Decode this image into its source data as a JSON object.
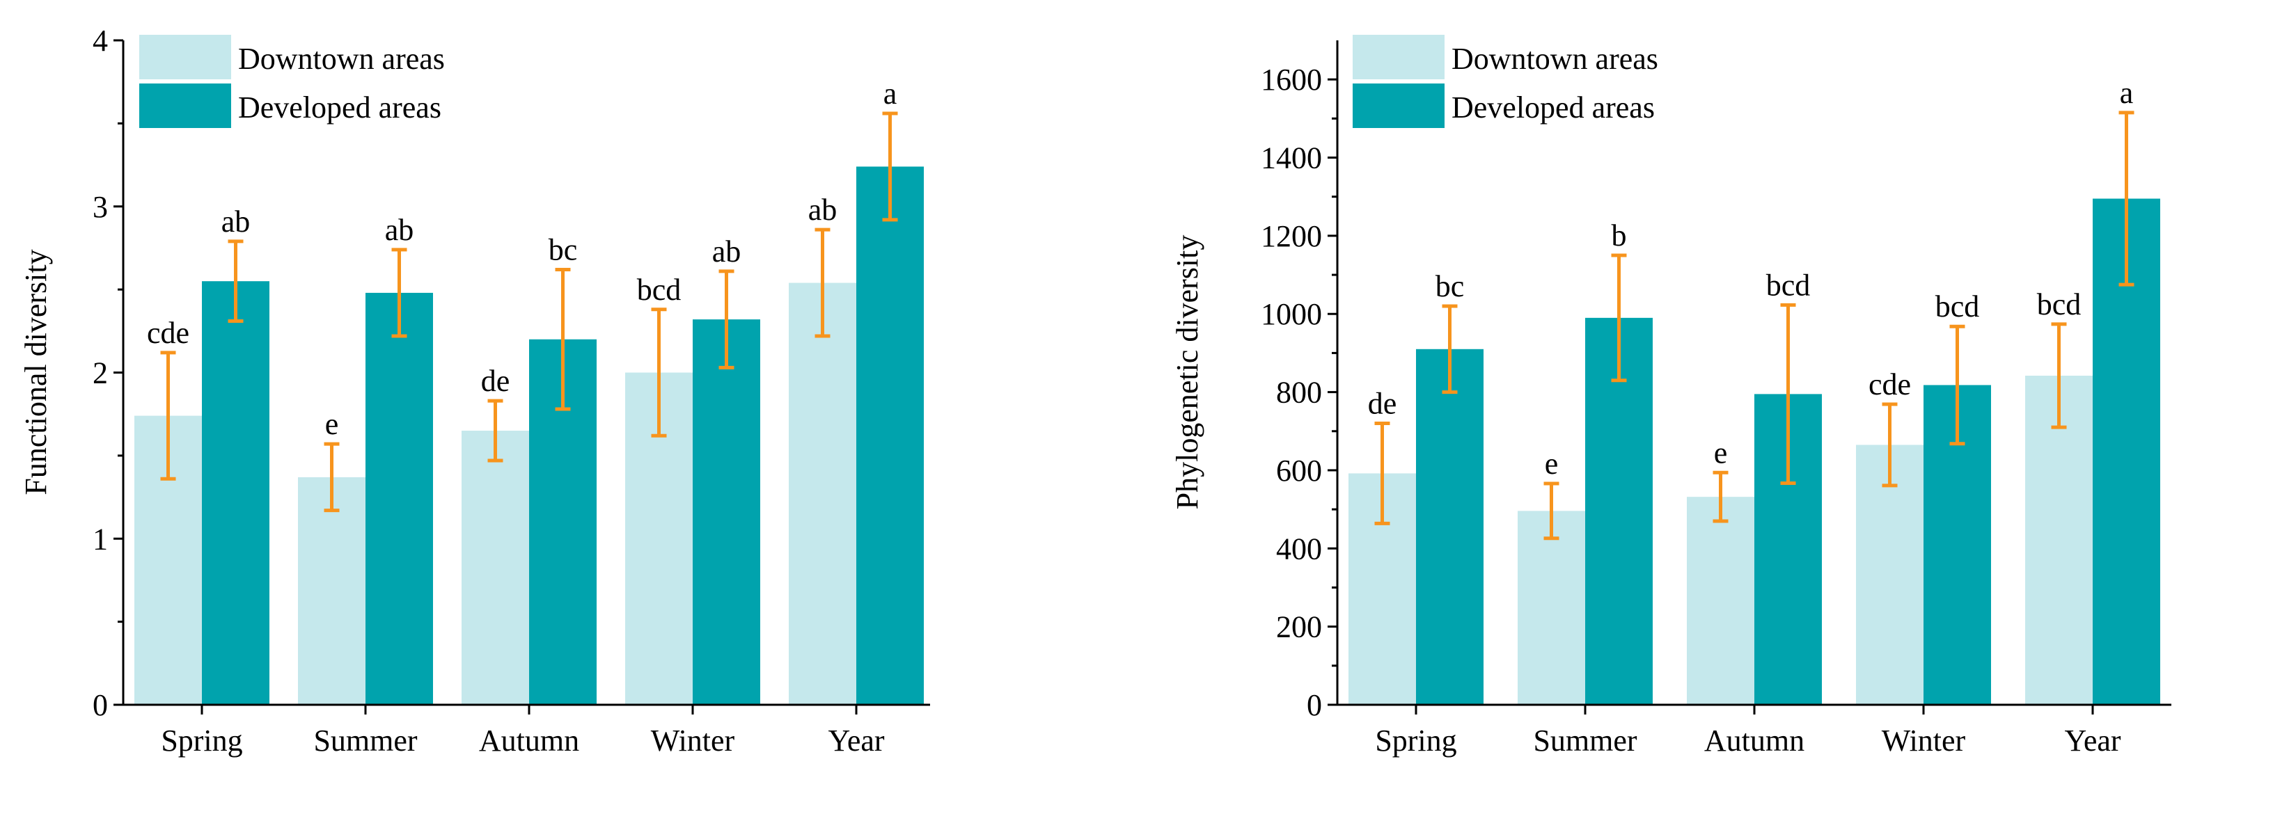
{
  "chart_data": [
    {
      "type": "bar",
      "title": "",
      "xlabel": "",
      "ylabel": "Functional diversity",
      "ylim": [
        0,
        4
      ],
      "yticks": [
        0,
        1,
        2,
        3,
        4
      ],
      "ytick_labels": [
        "0",
        "1",
        "2",
        "3",
        "4"
      ],
      "grid": false,
      "legend_position": "top-left",
      "categories": [
        "Spring",
        "Summer",
        "Autumn",
        "Winter",
        "Year"
      ],
      "series": [
        {
          "name": "Downtown areas",
          "color": "#c5e8ec",
          "values": [
            1.74,
            1.37,
            1.65,
            2.0,
            2.54
          ],
          "errors": [
            0.38,
            0.2,
            0.18,
            0.38,
            0.32
          ],
          "labels": [
            "cde",
            "e",
            "de",
            "bcd",
            "ab"
          ]
        },
        {
          "name": "Developed areas",
          "color": "#00a3ad",
          "values": [
            2.55,
            2.48,
            2.2,
            2.32,
            3.24
          ],
          "errors": [
            0.24,
            0.26,
            0.42,
            0.29,
            0.32
          ],
          "labels": [
            "ab",
            "ab",
            "bc",
            "ab",
            "a"
          ]
        }
      ],
      "error_bar_color": "#f7941d"
    },
    {
      "type": "bar",
      "title": "",
      "xlabel": "",
      "ylabel": "Phylogenetic diversity",
      "ylim": [
        0,
        1700
      ],
      "yticks": [
        0,
        200,
        400,
        600,
        800,
        1000,
        1200,
        1400,
        1600
      ],
      "ytick_labels": [
        "0",
        "200",
        "400",
        "600",
        "800",
        "1000",
        "1200",
        "1400",
        "1600"
      ],
      "grid": false,
      "legend_position": "top-left",
      "categories": [
        "Spring",
        "Summer",
        "Autumn",
        "Winter",
        "Year"
      ],
      "series": [
        {
          "name": "Downtown areas",
          "color": "#c5e8ec",
          "values": [
            592,
            496,
            532,
            665,
            842
          ],
          "errors": [
            128,
            70,
            62,
            104,
            132
          ],
          "labels": [
            "de",
            "e",
            "e",
            "cde",
            "bcd"
          ]
        },
        {
          "name": "Developed areas",
          "color": "#00a3ad",
          "values": [
            910,
            990,
            795,
            818,
            1295
          ],
          "errors": [
            110,
            160,
            228,
            150,
            220
          ],
          "labels": [
            "bc",
            "b",
            "bcd",
            "bcd",
            "a"
          ]
        }
      ],
      "error_bar_color": "#f7941d"
    }
  ]
}
